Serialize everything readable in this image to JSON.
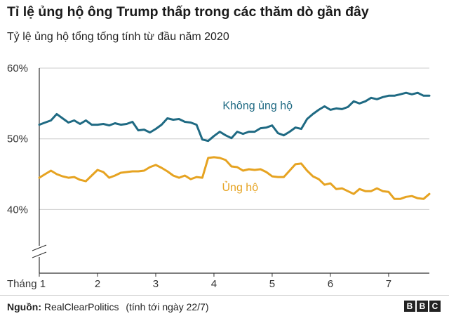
{
  "title": "Tỉ lệ ủng hộ ông Trump thấp trong các thăm dò gần đây",
  "subtitle": "Tỷ lệ ủng hộ tổng tống tính từ đầu năm 2020",
  "source_label": "Nguồn:",
  "source_name": "RealClearPolitics",
  "source_note": "(tính tới ngày 22/7)",
  "logo": [
    "B",
    "B",
    "C"
  ],
  "colors": {
    "disapprove": "#1f6a83",
    "approve": "#e6a321",
    "grid": "#cccccc",
    "axis": "#333333"
  },
  "chart_data": {
    "type": "line",
    "xlabel": "",
    "ylabel": "",
    "x_ticks": [
      "Tháng 1",
      "2",
      "3",
      "4",
      "5",
      "6",
      "7"
    ],
    "x_tick_values": [
      1,
      2,
      3,
      4,
      5,
      6,
      7
    ],
    "xlim": [
      1,
      7.7
    ],
    "y_ticks": [
      "60%",
      "50%",
      "40%"
    ],
    "y_tick_values": [
      60,
      50,
      40
    ],
    "ylim": [
      31,
      60
    ],
    "axis_break": true,
    "grid": true,
    "legend": "inline labels",
    "series": [
      {
        "name": "Không ủng hộ",
        "color": "#1f6a83",
        "x": [
          1.0,
          1.1,
          1.2,
          1.3,
          1.4,
          1.5,
          1.6,
          1.7,
          1.8,
          1.9,
          2.0,
          2.1,
          2.2,
          2.3,
          2.4,
          2.5,
          2.6,
          2.7,
          2.8,
          2.9,
          3.0,
          3.1,
          3.2,
          3.3,
          3.4,
          3.5,
          3.6,
          3.7,
          3.8,
          3.9,
          4.0,
          4.1,
          4.2,
          4.3,
          4.4,
          4.5,
          4.6,
          4.7,
          4.8,
          4.9,
          5.0,
          5.1,
          5.2,
          5.3,
          5.4,
          5.5,
          5.6,
          5.7,
          5.8,
          5.9,
          6.0,
          6.1,
          6.2,
          6.3,
          6.4,
          6.5,
          6.6,
          6.7,
          6.8,
          6.9,
          7.0,
          7.1,
          7.2,
          7.3,
          7.4,
          7.5,
          7.6,
          7.7
        ],
        "values": [
          52.0,
          52.3,
          52.6,
          53.5,
          52.9,
          52.3,
          52.6,
          52.1,
          52.6,
          52.0,
          52.0,
          52.1,
          51.9,
          52.2,
          52.0,
          52.1,
          52.4,
          51.2,
          51.3,
          50.9,
          51.4,
          52.0,
          52.9,
          52.7,
          52.8,
          52.4,
          52.3,
          52.0,
          49.9,
          49.7,
          50.4,
          51.0,
          50.5,
          50.1,
          51.0,
          50.7,
          51.0,
          51.0,
          51.5,
          51.6,
          51.9,
          50.8,
          50.5,
          51.0,
          51.6,
          51.4,
          52.8,
          53.5,
          54.1,
          54.6,
          54.1,
          54.3,
          54.2,
          54.5,
          55.3,
          55.0,
          55.3,
          55.8,
          55.6,
          55.9,
          56.1,
          56.1,
          56.3,
          56.5,
          56.3,
          56.5,
          56.1,
          56.1
        ]
      },
      {
        "name": "Ủng hộ",
        "color": "#e6a321",
        "x": [
          1.0,
          1.1,
          1.2,
          1.3,
          1.4,
          1.5,
          1.6,
          1.7,
          1.8,
          1.9,
          2.0,
          2.1,
          2.2,
          2.3,
          2.4,
          2.5,
          2.6,
          2.7,
          2.8,
          2.9,
          3.0,
          3.1,
          3.2,
          3.3,
          3.4,
          3.5,
          3.6,
          3.7,
          3.8,
          3.9,
          4.0,
          4.1,
          4.2,
          4.3,
          4.4,
          4.5,
          4.6,
          4.7,
          4.8,
          4.9,
          5.0,
          5.1,
          5.2,
          5.3,
          5.4,
          5.5,
          5.6,
          5.7,
          5.8,
          5.9,
          6.0,
          6.1,
          6.2,
          6.3,
          6.4,
          6.5,
          6.6,
          6.7,
          6.8,
          6.9,
          7.0,
          7.1,
          7.2,
          7.3,
          7.4,
          7.5,
          7.6,
          7.7
        ],
        "values": [
          44.5,
          45.0,
          45.5,
          45.0,
          44.7,
          44.5,
          44.6,
          44.2,
          44.0,
          44.8,
          45.6,
          45.3,
          44.5,
          44.8,
          45.2,
          45.3,
          45.4,
          45.4,
          45.5,
          46.0,
          46.3,
          45.9,
          45.4,
          44.8,
          44.5,
          44.8,
          44.3,
          44.6,
          44.5,
          47.3,
          47.4,
          47.3,
          47.0,
          46.1,
          46.0,
          45.5,
          45.7,
          45.6,
          45.7,
          45.3,
          44.7,
          44.6,
          44.6,
          45.5,
          46.4,
          46.5,
          45.5,
          44.7,
          44.3,
          43.5,
          43.7,
          42.9,
          43.0,
          42.6,
          42.2,
          42.9,
          42.6,
          42.6,
          43.0,
          42.6,
          42.5,
          41.5,
          41.5,
          41.8,
          41.9,
          41.6,
          41.5,
          42.2
        ]
      }
    ],
    "annotations": [
      {
        "text": "Không ủng hộ",
        "series": 0
      },
      {
        "text": "Ủng hộ",
        "series": 1
      }
    ]
  }
}
